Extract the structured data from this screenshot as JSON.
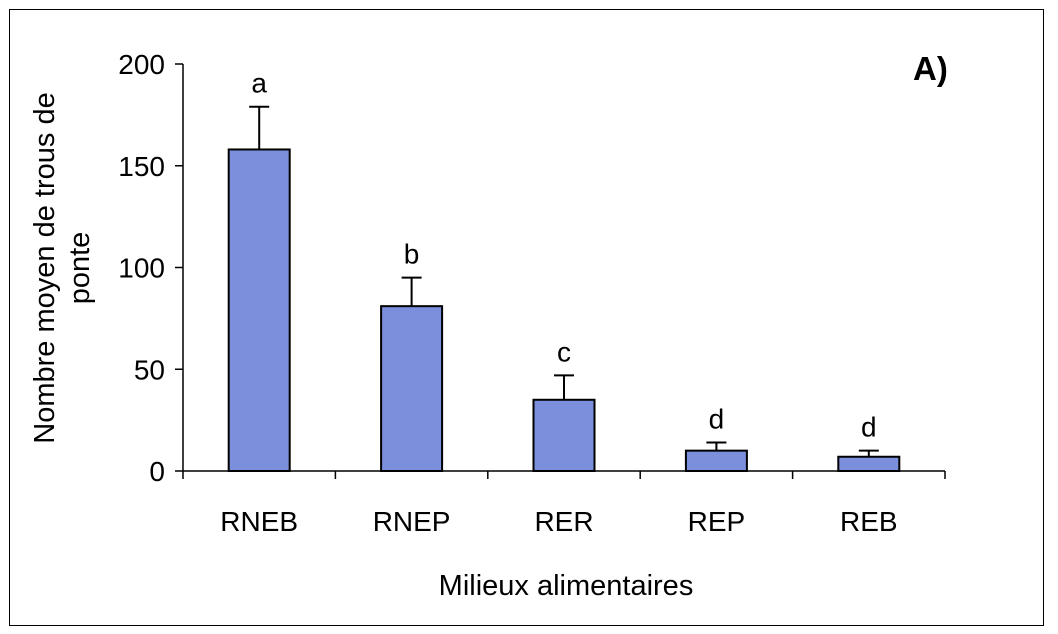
{
  "chart_data": {
    "type": "bar",
    "panel_label": "A)",
    "xlabel": "Milieux alimentaires",
    "ylabel": "Nombre moyen de trous de ponte",
    "ylim": [
      0,
      200
    ],
    "yticks": [
      "0",
      "50",
      "100",
      "150",
      "200"
    ],
    "categories": [
      "RNEB",
      "RNEP",
      "RER",
      "REP",
      "REB"
    ],
    "values": [
      158,
      81,
      35,
      10,
      7
    ],
    "errors": [
      21,
      14,
      12,
      4,
      3
    ],
    "significance_letters": [
      "a",
      "b",
      "c",
      "d",
      "d"
    ],
    "bar_color": "#7b8fdc",
    "grid": false,
    "legend": "none"
  }
}
